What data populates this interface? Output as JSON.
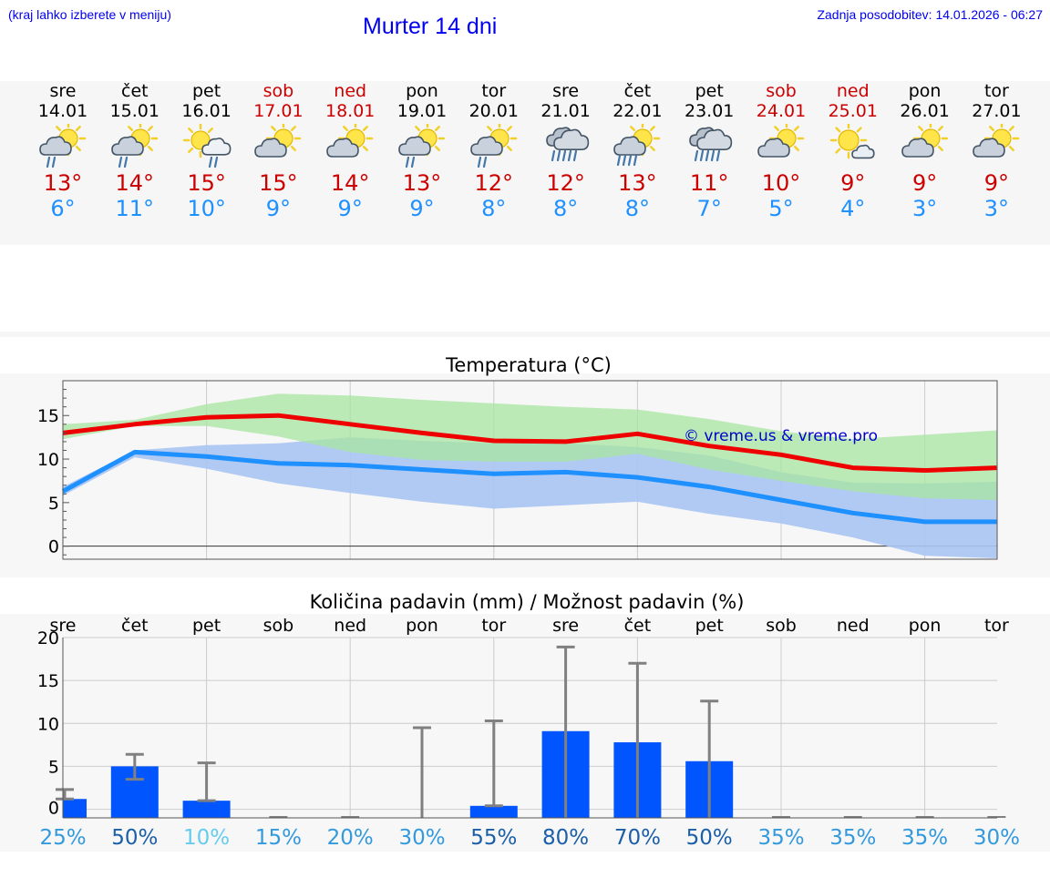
{
  "header": {
    "region_hint": "(kraj lahko izberete v meniju)",
    "title": "Murter 14 dni",
    "last_update": "Zadnja posodobitev: 14.01.2026 - 06:27"
  },
  "days": [
    {
      "name": "sre",
      "date": "14.01",
      "weekend": false,
      "icon": "partly-cloudy-rain-icon",
      "tmax": "13°",
      "tmin": "6°"
    },
    {
      "name": "čet",
      "date": "15.01",
      "weekend": false,
      "icon": "partly-cloudy-rain-icon",
      "tmax": "14°",
      "tmin": "11°"
    },
    {
      "name": "pet",
      "date": "16.01",
      "weekend": false,
      "icon": "sun-cloud-rain-icon",
      "tmax": "15°",
      "tmin": "10°"
    },
    {
      "name": "sob",
      "date": "17.01",
      "weekend": true,
      "icon": "partly-cloudy-icon",
      "tmax": "15°",
      "tmin": "9°"
    },
    {
      "name": "ned",
      "date": "18.01",
      "weekend": true,
      "icon": "partly-cloudy-icon",
      "tmax": "14°",
      "tmin": "9°"
    },
    {
      "name": "pon",
      "date": "19.01",
      "weekend": false,
      "icon": "partly-cloudy-rain-icon",
      "tmax": "13°",
      "tmin": "9°"
    },
    {
      "name": "tor",
      "date": "20.01",
      "weekend": false,
      "icon": "partly-cloudy-rain-icon",
      "tmax": "12°",
      "tmin": "8°"
    },
    {
      "name": "sre",
      "date": "21.01",
      "weekend": false,
      "icon": "cloudy-heavy-rain-icon",
      "tmax": "12°",
      "tmin": "8°"
    },
    {
      "name": "čet",
      "date": "22.01",
      "weekend": false,
      "icon": "partly-cloudy-heavy-rain-icon",
      "tmax": "13°",
      "tmin": "8°"
    },
    {
      "name": "pet",
      "date": "23.01",
      "weekend": false,
      "icon": "cloudy-heavy-rain-icon",
      "tmax": "11°",
      "tmin": "7°"
    },
    {
      "name": "sob",
      "date": "24.01",
      "weekend": true,
      "icon": "partly-cloudy-icon",
      "tmax": "10°",
      "tmin": "5°"
    },
    {
      "name": "ned",
      "date": "25.01",
      "weekend": true,
      "icon": "sun-small-cloud-icon",
      "tmax": "9°",
      "tmin": "4°"
    },
    {
      "name": "pon",
      "date": "26.01",
      "weekend": false,
      "icon": "partly-cloudy-icon",
      "tmax": "9°",
      "tmin": "3°"
    },
    {
      "name": "tor",
      "date": "27.01",
      "weekend": false,
      "icon": "partly-cloudy-icon",
      "tmax": "9°",
      "tmin": "3°"
    }
  ],
  "colors": {
    "max_line": "#ee0000",
    "min_line": "#1e90ff",
    "max_band": "#a8e6a0",
    "min_band": "#a9c4f2",
    "overlap_band": "#7ec5a2",
    "bar": "#0055ff",
    "whisker": "#808080",
    "watermark": "#0000cc"
  },
  "watermark": "© vreme.us & vreme.pro",
  "chart_data": [
    {
      "type": "line",
      "title": "Temperatura (°C)",
      "xlabel": "",
      "ylabel": "°C",
      "ylim": [
        -1.5,
        19
      ],
      "yticks": [
        0,
        5,
        10,
        15
      ],
      "x_days": [
        "14.01",
        "15.01",
        "16.01",
        "17.01",
        "18.01",
        "19.01",
        "20.01",
        "21.01",
        "22.01",
        "23.01",
        "24.01",
        "25.01",
        "26.01",
        "27.01"
      ],
      "series": [
        {
          "name": "max",
          "x": [
            0,
            1,
            2,
            3,
            4,
            5,
            6,
            7,
            8,
            9,
            10,
            11,
            12,
            13
          ],
          "values": [
            13.0,
            14.0,
            14.8,
            15.0,
            14.0,
            13.0,
            12.1,
            12.0,
            12.9,
            11.5,
            10.5,
            9.0,
            8.7,
            9.0
          ]
        },
        {
          "name": "min",
          "x": [
            0,
            1,
            2,
            3,
            4,
            5,
            6,
            7,
            8,
            9,
            10,
            11,
            12,
            13
          ],
          "values": [
            6.3,
            10.8,
            10.3,
            9.5,
            9.3,
            8.8,
            8.3,
            8.5,
            7.9,
            6.8,
            5.3,
            3.8,
            2.8,
            2.8
          ]
        }
      ],
      "bands": [
        {
          "name": "max-range",
          "lower": [
            12.3,
            13.8,
            13.8,
            12.6,
            10.8,
            9.9,
            9.7,
            9.7,
            10.6,
            8.8,
            7.5,
            6.3,
            5.5,
            5.3
          ],
          "upper": [
            14.0,
            14.5,
            16.3,
            17.5,
            17.3,
            16.8,
            16.4,
            16.0,
            15.7,
            14.6,
            13.2,
            12.3,
            12.8,
            13.3
          ]
        },
        {
          "name": "min-range",
          "lower": [
            5.8,
            10.2,
            8.9,
            7.2,
            6.1,
            5.1,
            4.3,
            4.7,
            5.1,
            3.7,
            2.6,
            1.0,
            -1.1,
            -1.4
          ],
          "upper": [
            6.8,
            11.0,
            11.6,
            11.8,
            12.5,
            12.1,
            11.8,
            11.8,
            11.4,
            10.4,
            8.5,
            7.3,
            7.2,
            7.4
          ]
        }
      ]
    },
    {
      "type": "bar",
      "title": "Količina padavin (mm) / Možnost padavin (%)",
      "xlabel": "",
      "ylabel": "mm",
      "ylim": [
        -1,
        20
      ],
      "yticks": [
        0,
        5,
        10,
        15,
        20
      ],
      "categories": [
        "sre",
        "čet",
        "pet",
        "sob",
        "ned",
        "pon",
        "tor",
        "sre",
        "čet",
        "pet",
        "sob",
        "ned",
        "pon",
        "tor"
      ],
      "values": [
        1.2,
        5.0,
        1.0,
        0,
        0,
        0,
        0.4,
        9.1,
        7.8,
        5.6,
        0,
        0,
        0,
        0
      ],
      "error_low": [
        1.2,
        3.5,
        1.0,
        0,
        0,
        0,
        0.4,
        0,
        0,
        0,
        0,
        0,
        0,
        0
      ],
      "error_high": [
        2.3,
        6.4,
        5.4,
        0,
        0,
        9.5,
        10.3,
        18.9,
        17.0,
        12.6,
        0,
        0,
        0,
        0
      ],
      "chance": [
        "25%",
        "50%",
        "10%",
        "15%",
        "20%",
        "30%",
        "55%",
        "80%",
        "70%",
        "50%",
        "35%",
        "35%",
        "35%",
        "30%"
      ],
      "chance_colors": [
        "#3399dd",
        "#1a5fa8",
        "#66ccee",
        "#3399dd",
        "#3399dd",
        "#3399dd",
        "#1a5fa8",
        "#1a5fa8",
        "#1a5fa8",
        "#1a5fa8",
        "#3399dd",
        "#3399dd",
        "#3399dd",
        "#3399dd"
      ]
    }
  ]
}
